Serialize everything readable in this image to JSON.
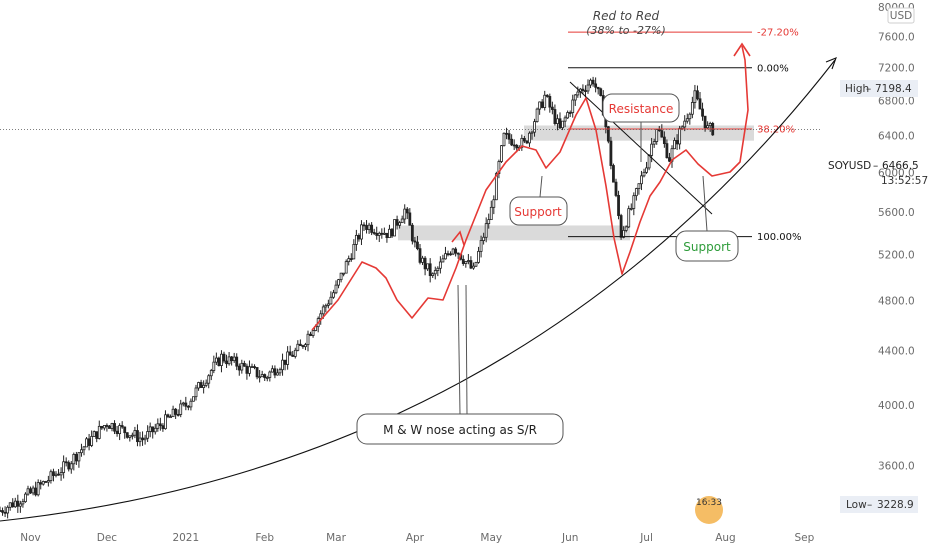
{
  "symbol": "SOYUSD",
  "currency": "USD",
  "last_price": "6466.5",
  "countdown": "13:52:57",
  "high_label": "High",
  "high_value": "7198.4",
  "low_label": "Low",
  "low_value": "3228.9",
  "logo_text": "16:33",
  "colors": {
    "bull": "#222222",
    "bear": "#222222",
    "annotation": "#e53935",
    "support_zone": "#d4d4d4",
    "trend": "#111111",
    "support_text": "#e53935",
    "support2_text": "#2e9c3a"
  },
  "annotations": {
    "red_to_red_title": "Red to Red",
    "red_to_red_sub": "(38% to -27%)",
    "resistance": "Resistance",
    "support_left": "Support",
    "support_right": "Support",
    "mw_nose": "M & W nose acting as S/R"
  },
  "fib_levels": [
    {
      "label": "-27.20%",
      "price": 7660
    },
    {
      "label": "0.00%",
      "price": 7198
    },
    {
      "label": "38.20%",
      "price": 6470
    },
    {
      "label": "100.00%",
      "price": 5365
    }
  ],
  "chart_data": {
    "type": "candlestick",
    "y_axis_ticks": [
      3600,
      4000,
      4400,
      4800,
      5200,
      5600,
      6000,
      6400,
      6800,
      7200,
      7600,
      8000
    ],
    "y_axis_labels": [
      "3600.0",
      "4000.0",
      "4400.0",
      "4800.0",
      "5200.0",
      "5600.0",
      "6000.0",
      "6400.0",
      "6800.0",
      "7200.0",
      "7600.0",
      "8000.0"
    ],
    "ylim": [
      3230,
      8100
    ],
    "x_axis_labels": [
      "Nov",
      "Dec",
      "2021",
      "Feb",
      "Mar",
      "Apr",
      "May",
      "Jun",
      "Jul",
      "Aug",
      "Sep"
    ],
    "x_range_dates": [
      "2020-10-20",
      "2021-09-15"
    ],
    "y_scale": "log",
    "price_path": [
      [
        "2020-10-20",
        3330
      ],
      [
        "2020-11-01",
        3430
      ],
      [
        "2020-11-15",
        3600
      ],
      [
        "2020-12-01",
        3880
      ],
      [
        "2020-12-15",
        3770
      ],
      [
        "2021-01-01",
        4000
      ],
      [
        "2021-01-15",
        4350
      ],
      [
        "2021-02-01",
        4200
      ],
      [
        "2021-02-15",
        4420
      ],
      [
        "2021-03-01",
        4900
      ],
      [
        "2021-03-12",
        5480
      ],
      [
        "2021-03-22",
        5390
      ],
      [
        "2021-03-28",
        5620
      ],
      [
        "2021-04-02",
        5200
      ],
      [
        "2021-04-08",
        5000
      ],
      [
        "2021-04-16",
        5280
      ],
      [
        "2021-04-24",
        5050
      ],
      [
        "2021-05-01",
        5620
      ],
      [
        "2021-05-06",
        6380
      ],
      [
        "2021-05-14",
        6300
      ],
      [
        "2021-05-22",
        6850
      ],
      [
        "2021-05-28",
        6460
      ],
      [
        "2021-06-04",
        6900
      ],
      [
        "2021-06-10",
        7050
      ],
      [
        "2021-06-14",
        6700
      ],
      [
        "2021-06-18",
        5900
      ],
      [
        "2021-06-21",
        5390
      ],
      [
        "2021-06-26",
        5700
      ],
      [
        "2021-07-01",
        6100
      ],
      [
        "2021-07-05",
        6500
      ],
      [
        "2021-07-10",
        6150
      ],
      [
        "2021-07-15",
        6500
      ],
      [
        "2021-07-20",
        6850
      ],
      [
        "2021-07-25",
        6470
      ],
      [
        "2021-07-27",
        6466
      ]
    ]
  }
}
